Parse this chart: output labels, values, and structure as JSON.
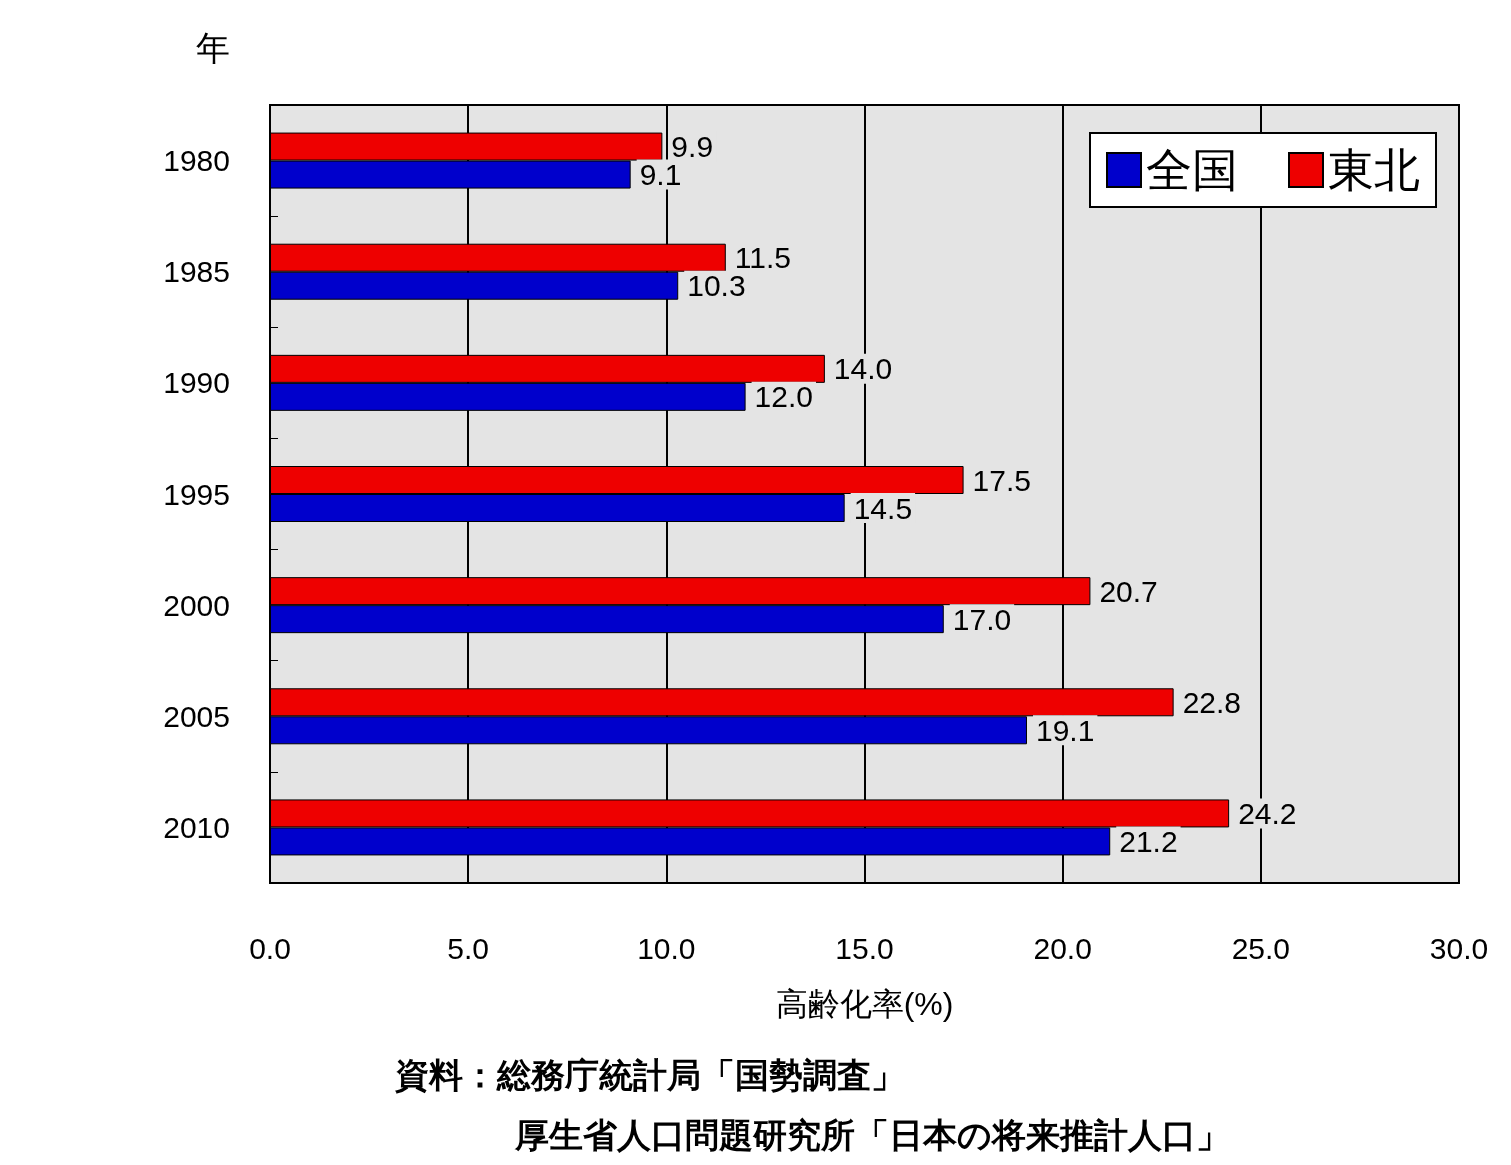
{
  "chart_data": {
    "type": "bar",
    "orientation": "horizontal",
    "ylabel": "年",
    "xlabel": "高齢化率(%)",
    "categories": [
      "1980",
      "1985",
      "1990",
      "1995",
      "2000",
      "2005",
      "2010"
    ],
    "series": [
      {
        "name": "全国",
        "color": "#0000cc",
        "values": [
          9.1,
          10.3,
          12.0,
          14.5,
          17.0,
          19.1,
          21.2
        ],
        "value_labels": [
          "9.1",
          "10.3",
          "12.0",
          "14.5",
          "17.0",
          "19.1",
          "21.2"
        ]
      },
      {
        "name": "東北",
        "color": "#ee0000",
        "values": [
          9.9,
          11.5,
          14.0,
          17.5,
          20.7,
          22.8,
          24.2
        ],
        "value_labels": [
          "9.9",
          "11.5",
          "14.0",
          "17.5",
          "20.7",
          "22.8",
          "24.2"
        ]
      }
    ],
    "xlim": [
      0,
      30
    ],
    "xticks": [
      {
        "value": 0,
        "label": "0.0"
      },
      {
        "value": 5,
        "label": "5.0"
      },
      {
        "value": 10,
        "label": "10.0"
      },
      {
        "value": 15,
        "label": "15.0"
      },
      {
        "value": 20,
        "label": "20.0"
      },
      {
        "value": 25,
        "label": "25.0"
      },
      {
        "value": 30,
        "label": "30.0"
      }
    ],
    "grid": "x",
    "legend": "top right",
    "annotations": [
      "資料：総務庁統計局「国勢調査」",
      "厚生省人口問題研究所「日本の将来推計人口」"
    ]
  }
}
